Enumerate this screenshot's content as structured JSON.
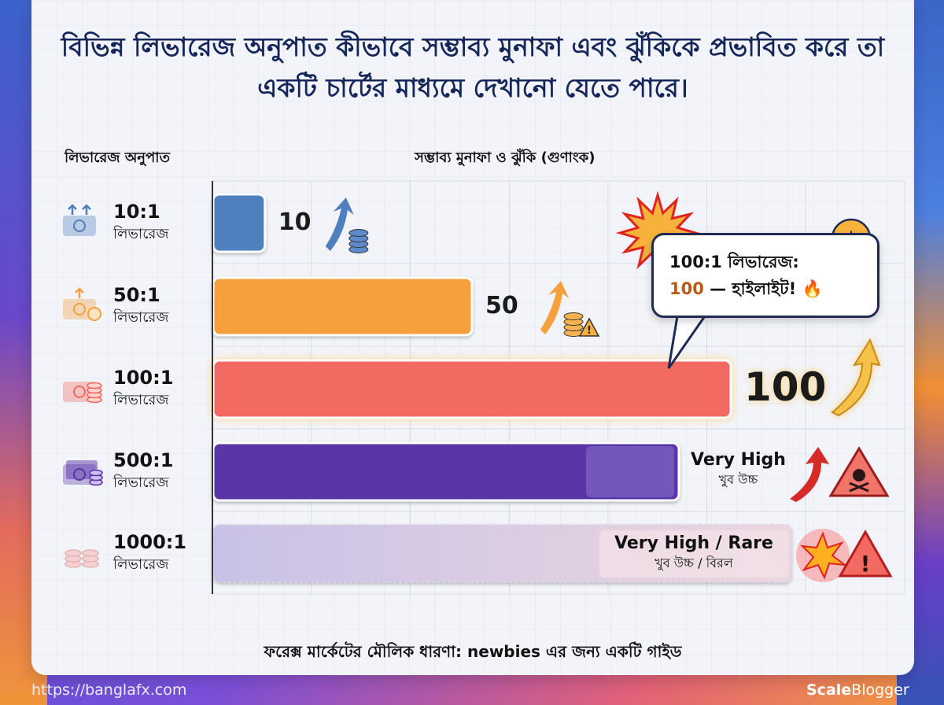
{
  "title": "বিভিন্ন লিভারেজ অনুপাত কীভাবে সম্ভাব্য মুনাফা এবং ঝুঁকিকে প্রভাবিত করে তা একটি চার্টের মাধ্যমে দেখানো যেতে পারে।",
  "left_header": "লিভারেজ অনুপাত",
  "chart_header": "সম্ভাব্য মুনাফা ও ঝুঁকি (গুণাংক)",
  "callout": {
    "line1": "100:1 লিভারেজ:",
    "line2_value": "100",
    "line2_text": " — হাইলাইট! 🔥"
  },
  "footer": "ফরেক্স মার্কেটের মৌলিক ধারণা: newbies এর জন্য একটি গাইড",
  "watermark_left": "https://banglafx.com",
  "watermark_right_bold": "Scale",
  "watermark_right_light": "Blogger",
  "chart_data": {
    "type": "bar",
    "orientation": "horizontal",
    "categories": [
      "10:1",
      "50:1",
      "100:1",
      "500:1",
      "1000:1"
    ],
    "category_sublabel": "লিভারেজ",
    "values": [
      10,
      50,
      100,
      null,
      null
    ],
    "value_labels": [
      "10",
      "50",
      "100",
      "Very High",
      "Very High / Rare"
    ],
    "value_sublabels": [
      "",
      "",
      "",
      "খুব উচ্চ",
      "খুব উচ্চ / বিরল"
    ],
    "colors": [
      "#4f7fbf",
      "#f5a03c",
      "#f26a62",
      "#5a34a8",
      "#c7bfe3"
    ],
    "icons": [
      "cash-up-icon",
      "cash-coin-icon",
      "cash-coins-icon",
      "cash-stack-icon",
      "coin-stack-icon"
    ],
    "indicators": [
      "up-arrow-coins-icon",
      "up-arrow-coins-warning-icon",
      "golden-arrow-icon",
      "red-arrow-skull-warning-icon",
      "explosion-warning-icon"
    ],
    "highlight": "100:1",
    "grid": true
  }
}
